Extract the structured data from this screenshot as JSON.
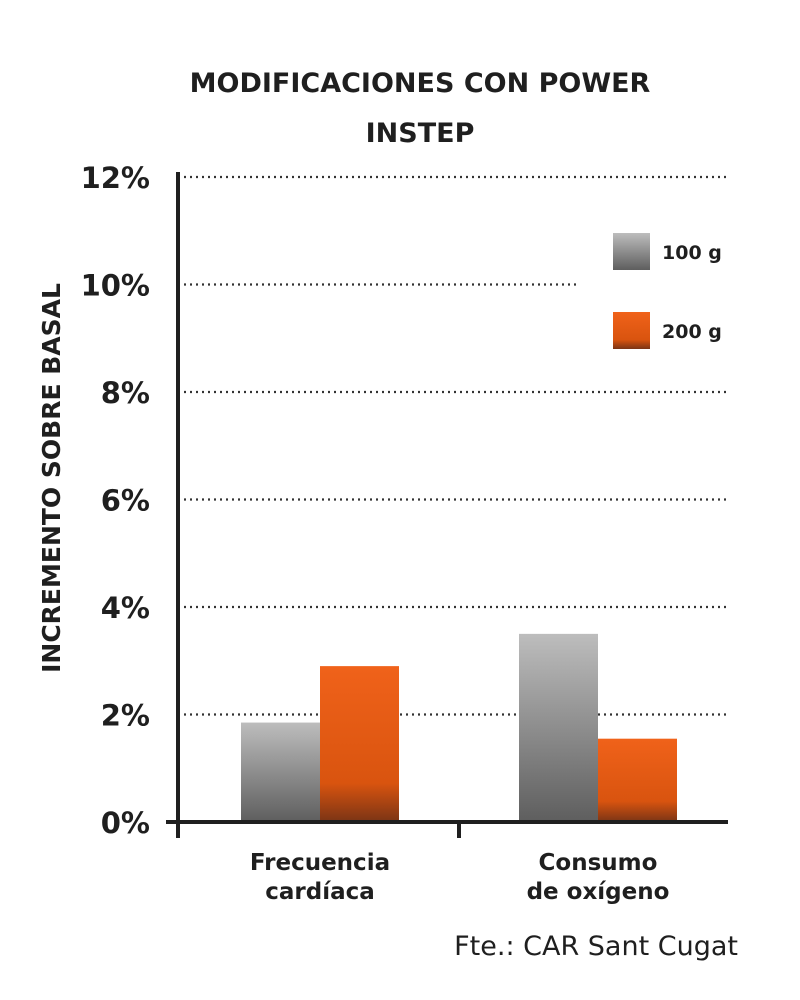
{
  "chart_data": {
    "type": "bar",
    "title_lines": [
      "MODIFICACIONES CON POWER",
      "INSTEP"
    ],
    "ylabel": "INCREMENTO SOBRE BASAL",
    "xlabel": "",
    "categories": [
      [
        "Frecuencia",
        "cardíaca"
      ],
      [
        "Consumo",
        "de oxígeno"
      ]
    ],
    "ylim": [
      0,
      12
    ],
    "yticks": [
      0,
      2,
      4,
      6,
      8,
      10,
      12
    ],
    "ytick_labels": [
      "0%",
      "2%",
      "4%",
      "6%",
      "8%",
      "10%",
      "12%"
    ],
    "grid": true,
    "legend_position": "top-right",
    "series": [
      {
        "name": "100 g",
        "values": [
          1.85,
          3.5
        ],
        "color": "#9a9a9a"
      },
      {
        "name": "200 g",
        "values": [
          2.9,
          1.55
        ],
        "color": "#e85c12"
      }
    ],
    "source": "Fte.: CAR Sant Cugat"
  }
}
